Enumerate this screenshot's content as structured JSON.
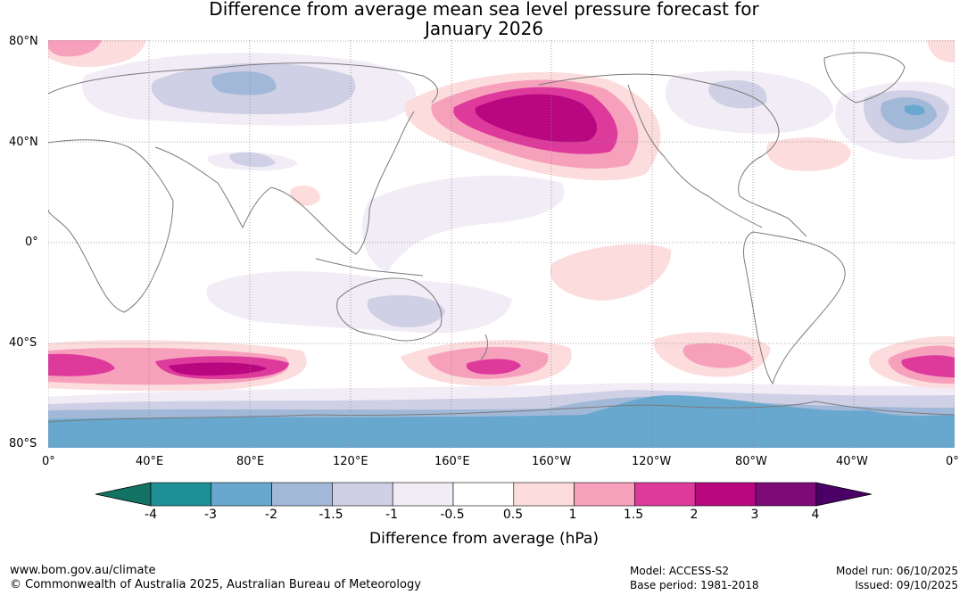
{
  "title": {
    "line1": "Difference from average mean sea level pressure forecast for",
    "line2": "January 2026"
  },
  "axes": {
    "lat_labels": [
      "80°N",
      "40°N",
      "0°",
      "40°S",
      "80°S"
    ],
    "lon_labels": [
      "0°",
      "40°E",
      "80°E",
      "120°E",
      "160°E",
      "160°W",
      "120°W",
      "80°W",
      "40°W",
      "0°"
    ]
  },
  "legend": {
    "ticks": [
      "-4",
      "-3",
      "-2",
      "-1.5",
      "-1",
      "-0.5",
      "0.5",
      "1",
      "1.5",
      "2",
      "3",
      "4"
    ],
    "colors": [
      "#1f8f96",
      "#68a8cf",
      "#a2b8d8",
      "#cfd0e5",
      "#f1ecf5",
      "#ffffff",
      "#fcdcdc",
      "#f7a0bc",
      "#dd3a9c",
      "#b8077f",
      "#7e0a77"
    ],
    "under_color": "#137363",
    "over_color": "#4b0067",
    "label": "Difference from average (hPa)"
  },
  "footer": {
    "url": "www.bom.gov.au/climate",
    "copyright": "© Commonwealth of Australia 2025, Australian Bureau of Meteorology",
    "model": "Model: ACCESS-S2",
    "base_period": "Base period: 1981-2018",
    "model_run": "Model run: 06/10/2025",
    "issued": "Issued: 09/10/2025"
  }
}
